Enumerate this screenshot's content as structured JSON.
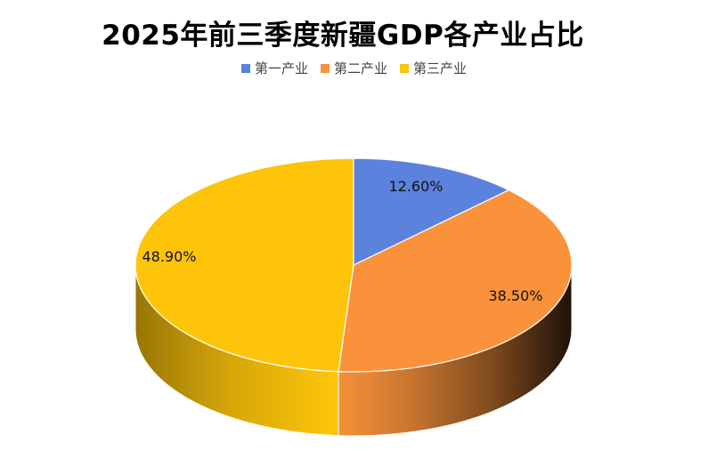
{
  "chart_data": {
    "type": "pie",
    "title": "2025年前三季度新疆GDP各产业占比",
    "legend_position": "top",
    "categories": [
      "第一产业",
      "第二产业",
      "第三产业"
    ],
    "values": [
      12.6,
      38.5,
      48.9
    ],
    "labels": [
      "12.60%",
      "38.50%",
      "48.90%"
    ],
    "colors": [
      "#5b82dd",
      "#f9923b",
      "#fdc40a"
    ],
    "style": "3d"
  }
}
